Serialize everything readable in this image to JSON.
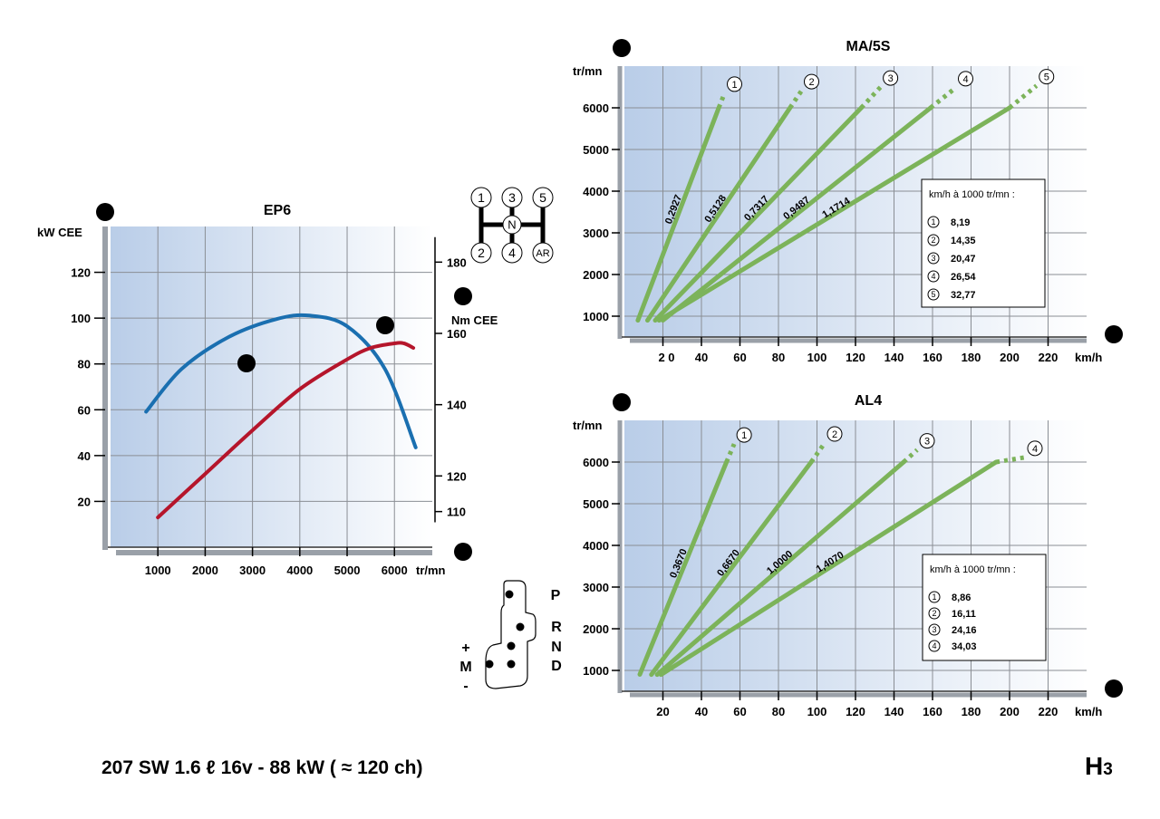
{
  "footer": {
    "title": "207 SW 1.6 ℓ 16v - 88 kW ( ≈ 120 ch)",
    "page_code_main": "H",
    "page_code_sub": "3"
  },
  "colors": {
    "power": "#1a6fb0",
    "torque": "#b5152b",
    "ratio_line": "#7cb35a",
    "grid": "#8a8e94",
    "axis": "#333333",
    "bg_left": "#b9cde8",
    "bg_right": "#ffffff"
  },
  "gearshift_manual": {
    "top": [
      "1",
      "3",
      "5"
    ],
    "center": "N",
    "bottom": [
      "2",
      "4",
      "AR"
    ]
  },
  "gearshift_auto": {
    "positions": [
      "P",
      "R",
      "N",
      "D"
    ],
    "manual_label": "M",
    "plus": "+",
    "minus": "-"
  },
  "chart_data": [
    {
      "id": "ep6",
      "type": "line",
      "title": "EP6",
      "marker": "b",
      "xlabel": "tr/mn",
      "x_marker": "a",
      "ylabel": "kW CEE",
      "y2label": "Nm CEE",
      "y2_marker": "c",
      "xlim": [
        0,
        6800
      ],
      "ylim": [
        0,
        140
      ],
      "y2lim": [
        100,
        190
      ],
      "x_ticks": [
        1000,
        2000,
        3000,
        4000,
        5000,
        6000
      ],
      "y_ticks": [
        20,
        40,
        60,
        80,
        100,
        120
      ],
      "y2_ticks": [
        110,
        120,
        140,
        160,
        180
      ],
      "series": [
        {
          "name": "",
          "key": "power",
          "marker": "d",
          "x": [
            1000,
            2000,
            3000,
            4000,
            5000,
            5500,
            6000,
            6200,
            6400
          ],
          "y": [
            13,
            32,
            51,
            69,
            82,
            87,
            89,
            89,
            87
          ]
        },
        {
          "name": "",
          "key": "torque",
          "marker": "e",
          "x": [
            750,
            1500,
            2500,
            3500,
            4200,
            5000,
            5800,
            6450
          ],
          "y": [
            138,
            150,
            159,
            164,
            165,
            162,
            150,
            128
          ]
        }
      ]
    },
    {
      "id": "ma5s",
      "type": "line",
      "title": "MA/5S",
      "marker": "a",
      "ylabel": "tr/mn",
      "xlabel": "km/h",
      "x_marker": "f",
      "xlim": [
        0,
        240
      ],
      "ylim": [
        500,
        7000
      ],
      "x_ticks": [
        40,
        60,
        80,
        100,
        120,
        140,
        160,
        180,
        200,
        220
      ],
      "x_tick_extra": "2 0",
      "y_ticks": [
        1000,
        2000,
        3000,
        4000,
        5000,
        6000
      ],
      "gears": [
        {
          "gear": "1",
          "ratio": "0,2927",
          "x0": 7,
          "x1": 49,
          "x2": 52
        },
        {
          "gear": "2",
          "ratio": "0,5128",
          "x0": 12,
          "x1": 86,
          "x2": 92
        },
        {
          "gear": "3",
          "ratio": "0,7317",
          "x0": 16,
          "x1": 123,
          "x2": 133
        },
        {
          "gear": "4",
          "ratio": "0,9487",
          "x0": 20,
          "x1": 159,
          "x2": 172
        },
        {
          "gear": "5",
          "ratio": "1,1714",
          "x0": 18,
          "x1": 200,
          "x2": 214
        }
      ],
      "legend": {
        "title": "km/h à 1000 tr/mn :",
        "items": [
          {
            "gear": "1",
            "value": "8,19"
          },
          {
            "gear": "2",
            "value": "14,35"
          },
          {
            "gear": "3",
            "value": "20,47"
          },
          {
            "gear": "4",
            "value": "26,54"
          },
          {
            "gear": "5",
            "value": "32,77"
          }
        ]
      }
    },
    {
      "id": "al4",
      "type": "line",
      "title": "AL4",
      "marker": "a",
      "ylabel": "tr/mn",
      "xlabel": "km/h",
      "x_marker": "f",
      "xlim": [
        0,
        240
      ],
      "ylim": [
        500,
        7000
      ],
      "x_ticks": [
        20,
        40,
        60,
        80,
        100,
        120,
        140,
        160,
        180,
        200,
        220
      ],
      "y_ticks": [
        1000,
        2000,
        3000,
        4000,
        5000,
        6000
      ],
      "gears": [
        {
          "gear": "1",
          "ratio": "0,3670",
          "x0": 8,
          "x1": 53,
          "x2": 57
        },
        {
          "gear": "2",
          "ratio": "0,6670",
          "x0": 14,
          "x1": 97,
          "x2": 104
        },
        {
          "gear": "3",
          "ratio": "1,0000",
          "x0": 17,
          "x1": 145,
          "x2": 152
        },
        {
          "gear": "4",
          "ratio": "1,4070",
          "x0": 19,
          "x1": 193,
          "x2": 208
        }
      ],
      "legend": {
        "title": "km/h à 1000 tr/mn :",
        "items": [
          {
            "gear": "1",
            "value": "8,86"
          },
          {
            "gear": "2",
            "value": "16,11"
          },
          {
            "gear": "3",
            "value": "24,16"
          },
          {
            "gear": "4",
            "value": "34,03"
          }
        ]
      }
    }
  ]
}
